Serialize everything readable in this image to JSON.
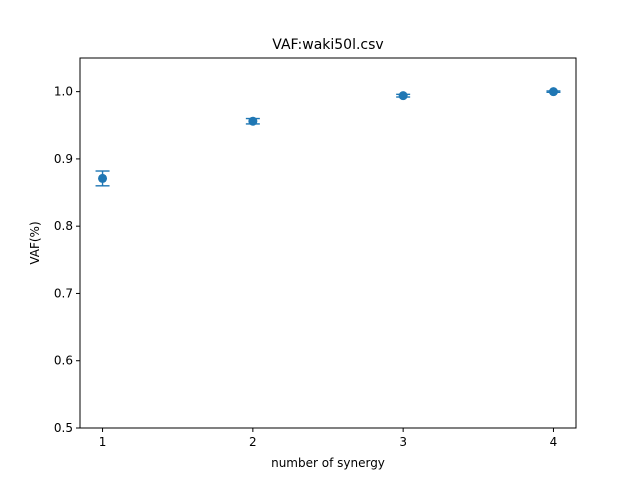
{
  "chart_data": {
    "type": "scatter",
    "title": "VAF:waki50l.csv",
    "xlabel": "number of synergy",
    "ylabel": "VAF(%)",
    "x": [
      1,
      2,
      3,
      4
    ],
    "x_ticks": [
      "1",
      "2",
      "3",
      "4"
    ],
    "xlim": [
      0.85,
      4.15
    ],
    "series": [
      {
        "values": [
          0.871,
          0.956,
          0.994,
          1.0
        ],
        "errors": [
          0.011,
          0.004,
          0.002,
          0.001
        ],
        "color": "#1f77b4"
      }
    ],
    "ylim": [
      0.5,
      1.05
    ],
    "y_ticks": [
      "0.5",
      "0.6",
      "0.7",
      "0.8",
      "0.9",
      "1.0"
    ],
    "grid": false
  }
}
